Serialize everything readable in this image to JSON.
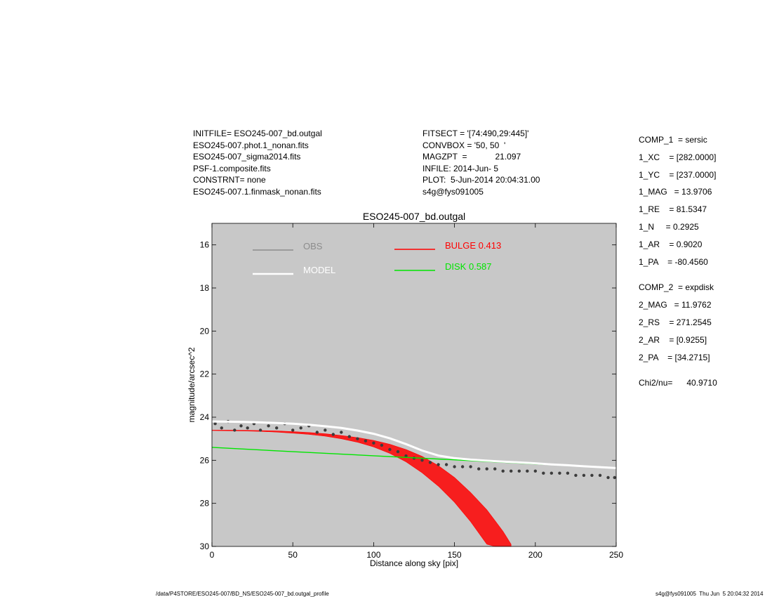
{
  "header": {
    "left": [
      "INITFILE= ESO245-007_bd.outgal",
      "ESO245-007.phot.1_nonan.fits",
      "ESO245-007_sigma2014.fits",
      "PSF-1.composite.fits",
      "CONSTRNT= none",
      "ESO245-007.1.finmask_nonan.fits"
    ],
    "middle": [
      "FITSECT = '[74:490,29:445]'",
      "CONVBOX = '50, 50  '",
      "MAGZPT  =            21.097",
      "INFILE: 2014-Jun- 5",
      "PLOT:  5-Jun-2014 20:04:31.00",
      "s4g@fys091005"
    ]
  },
  "params": {
    "comp1": [
      "COMP_1  = sersic",
      "1_XC    = [282.0000]",
      "1_YC    = [237.0000]",
      "1_MAG   = 13.9706",
      "1_RE    = 81.5347",
      "1_N     = 0.2925",
      "1_AR    = 0.9020",
      "1_PA    = -80.4560"
    ],
    "comp2": [
      "COMP_2  = expdisk",
      "2_MAG   = 11.9762",
      "2_RS    = 271.2545",
      "2_AR    = [0.9255]",
      "2_PA    = [34.2715]"
    ],
    "chi2": "Chi2/nu=      40.9710"
  },
  "footer": {
    "left": "/data/P4STORE/ESO245-007/BD_NS/ESO245-007_bd.outgal_profile",
    "right": "s4g@fys091005  Thu Jun  5 20:04:32 2014"
  },
  "colors": {
    "plot_bg": "#c8c8c8",
    "obs": "#3c3c3c",
    "obs_legend": "#8c8c8c",
    "model": "#ffffff",
    "bulge": "#ff0000",
    "disk": "#00e600"
  },
  "chart_data": {
    "type": "scatter",
    "title": "ESO245-007_bd.outgal",
    "xlabel": "Distance along sky [pix]",
    "ylabel": "magnitude/arcsec^2",
    "xlim": [
      0,
      250
    ],
    "ylim": [
      30,
      15
    ],
    "y_inverted": true,
    "xticks": [
      0,
      50,
      100,
      150,
      200,
      250
    ],
    "yticks": [
      16,
      18,
      20,
      22,
      24,
      26,
      28,
      30
    ],
    "grid": false,
    "legend": [
      {
        "label": "OBS",
        "color": "#8c8c8c"
      },
      {
        "label": "MODEL",
        "color": "#ffffff"
      },
      {
        "label": "BULGE  0.413",
        "color": "#ff0000"
      },
      {
        "label": "DISK  0.587",
        "color": "#00e600"
      }
    ],
    "series": [
      {
        "name": "OBS",
        "kind": "scatter",
        "x": [
          2,
          6,
          10,
          14,
          18,
          22,
          26,
          30,
          35,
          40,
          45,
          50,
          55,
          60,
          65,
          70,
          75,
          80,
          85,
          90,
          95,
          100,
          105,
          110,
          115,
          120,
          125,
          130,
          135,
          140,
          145,
          150,
          155,
          160,
          165,
          170,
          175,
          180,
          185,
          190,
          195,
          200,
          205,
          210,
          215,
          220,
          225,
          230,
          235,
          240,
          245,
          249
        ],
        "y": [
          24.3,
          24.5,
          24.2,
          24.6,
          24.4,
          24.5,
          24.3,
          24.6,
          24.4,
          24.5,
          24.3,
          24.6,
          24.5,
          24.4,
          24.7,
          24.6,
          24.8,
          24.7,
          24.9,
          25.0,
          25.1,
          25.2,
          25.3,
          25.5,
          25.6,
          25.8,
          25.9,
          26.0,
          26.1,
          26.2,
          26.2,
          26.3,
          26.3,
          26.3,
          26.4,
          26.4,
          26.4,
          26.5,
          26.5,
          26.5,
          26.5,
          26.5,
          26.6,
          26.6,
          26.6,
          26.6,
          26.7,
          26.7,
          26.7,
          26.7,
          26.8,
          26.8
        ]
      },
      {
        "name": "MODEL",
        "kind": "line",
        "x": [
          0,
          10,
          20,
          30,
          40,
          50,
          60,
          70,
          80,
          90,
          100,
          110,
          120,
          130,
          140,
          150,
          160,
          170,
          180,
          190,
          200,
          210,
          220,
          230,
          240,
          250
        ],
        "y": [
          24.2,
          24.21,
          24.22,
          24.24,
          24.27,
          24.3,
          24.35,
          24.42,
          24.5,
          24.62,
          24.77,
          24.98,
          25.25,
          25.55,
          25.78,
          25.9,
          25.97,
          26.02,
          26.06,
          26.1,
          26.14,
          26.19,
          26.23,
          26.28,
          26.32,
          26.36
        ]
      },
      {
        "name": "BULGE",
        "kind": "band",
        "x": [
          0,
          10,
          20,
          30,
          40,
          50,
          60,
          70,
          80,
          90,
          100,
          110,
          120,
          130,
          140,
          150,
          160,
          170,
          175,
          180,
          185
        ],
        "y_low": [
          24.6,
          24.6,
          24.61,
          24.62,
          24.64,
          24.67,
          24.71,
          24.77,
          24.85,
          24.95,
          25.08,
          25.26,
          25.5,
          25.82,
          26.25,
          26.8,
          27.5,
          28.3,
          28.8,
          29.3,
          29.9
        ],
        "y_high": [
          24.62,
          24.63,
          24.64,
          24.66,
          24.69,
          24.74,
          24.8,
          24.88,
          25.0,
          25.16,
          25.38,
          25.68,
          26.07,
          26.58,
          27.2,
          27.95,
          28.85,
          29.9,
          30.0,
          30.0,
          30.0
        ]
      },
      {
        "name": "DISK",
        "kind": "line",
        "x": [
          0,
          50,
          100,
          150,
          200,
          250
        ],
        "y": [
          25.4,
          25.6,
          25.79,
          25.98,
          26.17,
          26.36
        ]
      }
    ]
  }
}
